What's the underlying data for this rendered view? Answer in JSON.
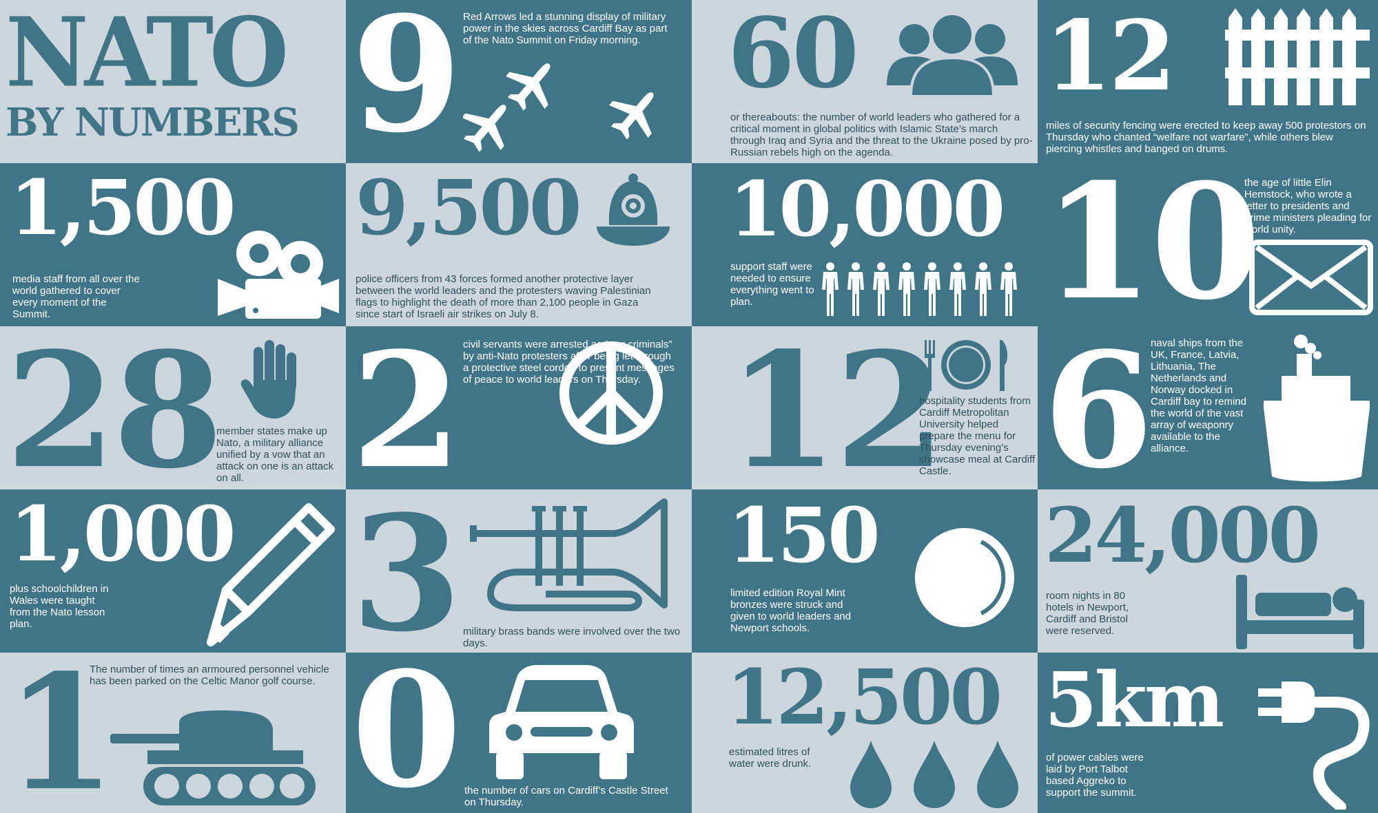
{
  "title": {
    "line1": "NATO",
    "line2": "BY NUMBERS"
  },
  "colors": {
    "teal": "#3f7587",
    "grey": "#ced6dd",
    "white": "#ffffff"
  },
  "cells": [
    {
      "id": "c9",
      "number": "9",
      "text": "Red Arrows led a stunning display of military power in the skies across Cardiff Bay as part of the Nato Summit on Friday morning.",
      "icon": "airplane-icon"
    },
    {
      "id": "c60",
      "number": "60",
      "text": "or thereabouts: the number of world leaders who gathered for a critical moment in global politics with Islamic State’s march through Iraq and Syria and the threat to the Ukraine posed by pro-Russian rebels high on the agenda.",
      "icon": "people-icon"
    },
    {
      "id": "c12a",
      "number": "12",
      "text": "miles of security fencing were erected to keep away 500 protestors on Thursday who chanted “welfare not warfare”, while others blew piercing whistles and banged on drums.",
      "icon": "fence-icon"
    },
    {
      "id": "c1500",
      "number": "1,500",
      "text": "media staff from all over the world gathered to cover every moment of the Summit.",
      "icon": "camera-icon"
    },
    {
      "id": "c9500",
      "number": "9,500",
      "text": "police officers from 43 forces formed another protective layer between the world leaders and the protesters waving Palestinian flags to highlight the death of more than 2,100 people in Gaza since start of Israeli air strikes on July 8.",
      "icon": "police-helmet-icon"
    },
    {
      "id": "c10000",
      "number": "10,000",
      "text": "support staff were needed to ensure everything went to plan.",
      "icon": "person-icon"
    },
    {
      "id": "c10",
      "number": "10",
      "text": "the age of little Elin Hemstock, who wrote a letter to presidents and prime ministers pleading for world unity.",
      "icon": "envelope-icon"
    },
    {
      "id": "c28",
      "number": "28",
      "text": "member states make up Nato, a military alliance unified by a vow that an attack on one is an attack on all.",
      "icon": "hand-icon"
    },
    {
      "id": "c2",
      "number": "2",
      "text": "civil servants were arrested as “war criminals” by anti-Nato protesters after being let through a protective steel cordon to present messages of peace to world leaders on Thursday.",
      "icon": "peace-icon"
    },
    {
      "id": "c12b",
      "number": "12",
      "text": "hospitality students from Cardiff Metropolitan University helped prepare the menu for Thursday evening’s showcase meal at Cardiff Castle.",
      "icon": "cutlery-icon"
    },
    {
      "id": "c6",
      "number": "6",
      "text": "naval ships from the UK, France, Latvia, Lithuania, The Netherlands and Norway docked in Cardiff bay to remind the world of the vast array of weaponry available to the alliance.",
      "icon": "ship-icon"
    },
    {
      "id": "c1000",
      "number": "1,000",
      "text": "plus schoolchildren in Wales were taught from the Nato lesson plan.",
      "icon": "pencil-icon"
    },
    {
      "id": "c3",
      "number": "3",
      "text": "military brass bands were involved over the two days.",
      "icon": "cornet-icon"
    },
    {
      "id": "c150",
      "number": "150",
      "text": "limited edition Royal Mint bronzes were struck and given to world leaders and Newport schools.",
      "icon": "coin-icon"
    },
    {
      "id": "c24000",
      "number": "24,000",
      "text": "room nights in 80 hotels in Newport, Cardiff and Bristol were reserved.",
      "icon": "bed-icon"
    },
    {
      "id": "c1",
      "number": "1",
      "text": "The number of times an armoured personnel vehicle has been parked on the Celtic Manor golf course.",
      "icon": "tank-icon"
    },
    {
      "id": "c0",
      "number": "0",
      "text": "the number of cars on Cardiff’s Castle Street on Thursday.",
      "icon": "car-icon"
    },
    {
      "id": "c12500",
      "number": "12,500",
      "text": "estimated litres of water were drunk.",
      "icon": "water-drop-icon"
    },
    {
      "id": "c5km",
      "number": "5km",
      "text": "of power cables were laid by Port Talbot based Aggreko to support the summit.",
      "icon": "power-plug-icon"
    }
  ]
}
